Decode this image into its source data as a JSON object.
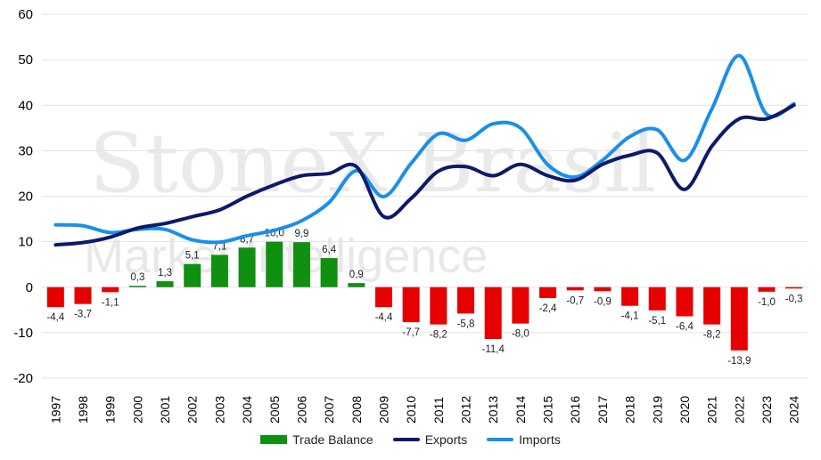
{
  "watermark": {
    "line1": "StoneX Brasil",
    "line2": "Market Intelligence"
  },
  "chart_data": {
    "type": "bar",
    "categories": [
      "1997",
      "1998",
      "1999",
      "2000",
      "2001",
      "2002",
      "2003",
      "2004",
      "2005",
      "2006",
      "2007",
      "2008",
      "2009",
      "2010",
      "2011",
      "2012",
      "2013",
      "2014",
      "2015",
      "2016",
      "2017",
      "2018",
      "2019",
      "2020",
      "2021",
      "2022",
      "2023",
      "2024"
    ],
    "ylim": [
      -20,
      60
    ],
    "yticks": [
      -20,
      -10,
      0,
      10,
      20,
      30,
      40,
      50,
      60
    ],
    "grid": true,
    "legend_position": "bottom",
    "series": [
      {
        "name": "Trade Balance",
        "kind": "bar",
        "color": "#109010",
        "negative_color": "#e60000",
        "values": [
          -4.4,
          -3.7,
          -1.1,
          0.3,
          1.3,
          5.1,
          7.1,
          8.7,
          10.0,
          9.9,
          6.4,
          0.9,
          -4.4,
          -7.7,
          -8.2,
          -5.8,
          -11.4,
          -8.0,
          -2.4,
          -0.7,
          -0.9,
          -4.1,
          -5.1,
          -6.4,
          -8.2,
          -13.9,
          -1.0,
          -0.3
        ],
        "labels": [
          "-4,4",
          "-3,7",
          "-1,1",
          "0,3",
          "1,3",
          "5,1",
          "7,1",
          "8,7",
          "10,0",
          "9,9",
          "6,4",
          "0,9",
          "-4,4",
          "-7,7",
          "-8,2",
          "-5,8",
          "-11,4",
          "-8,0",
          "-2,4",
          "-0,7",
          "-0,9",
          "-4,1",
          "-5,1",
          "-6,4",
          "-8,2",
          "-13,9",
          "-1,0",
          "-0,3"
        ]
      },
      {
        "name": "Exports",
        "kind": "line",
        "color": "#0d1a6b",
        "values": [
          9.3,
          9.8,
          11.0,
          13.0,
          14.0,
          15.5,
          17.0,
          20.0,
          22.5,
          24.5,
          25.0,
          26.5,
          15.5,
          19.5,
          25.5,
          26.5,
          24.5,
          27.0,
          24.5,
          23.5,
          27.0,
          29.0,
          29.5,
          21.5,
          31.0,
          37.0,
          37.0,
          40.0
        ]
      },
      {
        "name": "Imports",
        "kind": "line",
        "color": "#1a8fea",
        "values": [
          13.7,
          13.5,
          12.0,
          12.7,
          12.7,
          10.4,
          9.9,
          11.3,
          12.5,
          14.6,
          18.6,
          25.6,
          19.9,
          27.2,
          33.7,
          32.3,
          35.9,
          35.0,
          26.9,
          24.2,
          27.9,
          33.1,
          34.6,
          27.9,
          39.2,
          50.9,
          38.0,
          40.3
        ]
      }
    ]
  }
}
